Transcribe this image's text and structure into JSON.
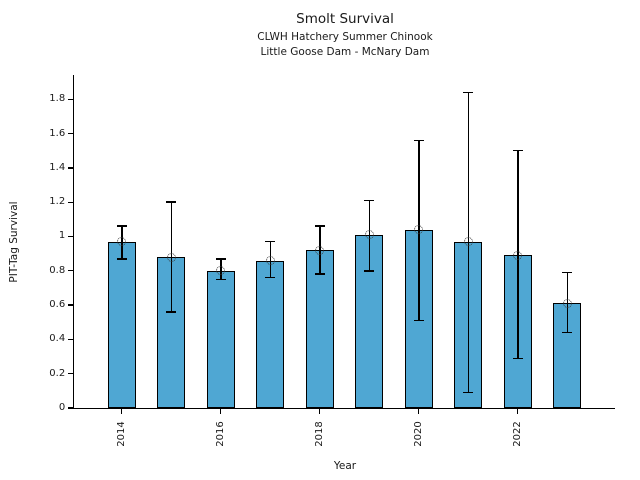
{
  "chart_data": {
    "type": "bar",
    "title": "Smolt Survival",
    "subtitle1": "CLWH Hatchery Summer Chinook",
    "subtitle2": "Little Goose Dam - McNary Dam",
    "xlabel": "Year",
    "ylabel": "PIT-Tag Survival",
    "categories": [
      "2014",
      "2015",
      "2016",
      "2017",
      "2018",
      "2019",
      "2020",
      "2021",
      "2022",
      "2023"
    ],
    "values": [
      0.97,
      0.88,
      0.8,
      0.86,
      0.92,
      1.01,
      1.04,
      0.97,
      0.89,
      0.61
    ],
    "error_low": [
      0.87,
      0.56,
      0.75,
      0.76,
      0.78,
      0.8,
      0.51,
      0.09,
      0.29,
      0.44
    ],
    "error_high": [
      1.06,
      1.2,
      0.87,
      0.97,
      1.06,
      1.21,
      1.56,
      1.84,
      1.5,
      0.79
    ],
    "marker": "open-circle-at-bar-top",
    "yticks": [
      0,
      0.2,
      0.4,
      0.6,
      0.8,
      1,
      1.2,
      1.4,
      1.6,
      1.8
    ],
    "ytick_labels": [
      "0",
      "0.2",
      "0.4",
      "0.6",
      "0.8",
      "1",
      "1.2",
      "1.4",
      "1.6",
      "1.8"
    ],
    "xtick_labels": [
      "2014",
      "2016",
      "2018",
      "2020",
      "2022"
    ],
    "ylim": [
      0,
      1.93
    ],
    "grid": false,
    "legend": false,
    "bar_color": "#4fa7d3",
    "bar_edge_color": "#000000",
    "error_color": "#000000",
    "marker_edge_color": "#3a3a3a"
  }
}
